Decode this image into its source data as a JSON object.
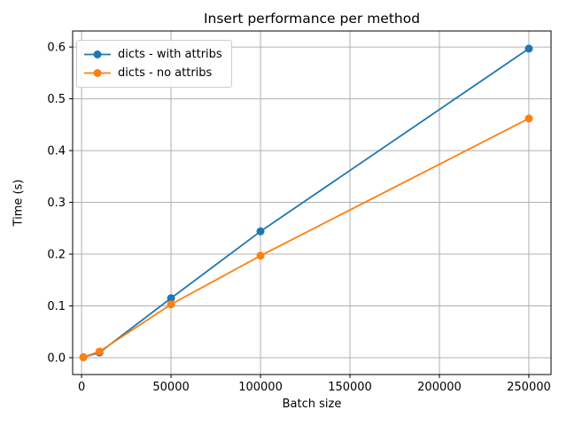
{
  "chart_data": {
    "type": "line",
    "title": "Insert performance per method",
    "xlabel": "Batch size",
    "ylabel": "Time (s)",
    "x_ticks": [
      0,
      50000,
      100000,
      150000,
      200000,
      250000
    ],
    "x_tick_labels": [
      "0",
      "50000",
      "100000",
      "150000",
      "200000",
      "250000"
    ],
    "y_ticks": [
      0,
      0.1,
      0.2,
      0.3,
      0.4,
      0.5,
      0.6
    ],
    "y_tick_labels": [
      "0.0",
      "0.1",
      "0.2",
      "0.3",
      "0.4",
      "0.5",
      "0.6"
    ],
    "xlim": [
      -5000,
      262400
    ],
    "ylim": [
      -0.0325,
      0.631
    ],
    "grid": true,
    "legend_position": "upper left",
    "series": [
      {
        "name": "dicts - with attribs",
        "color": "#1f77b4",
        "marker": "circle",
        "x": [
          1000,
          10000,
          50000,
          100000,
          250000
        ],
        "y": [
          0.001,
          0.01,
          0.115,
          0.244,
          0.597
        ]
      },
      {
        "name": "dicts - no attribs",
        "color": "#ff7f0e",
        "marker": "circle",
        "x": [
          1000,
          10000,
          50000,
          100000,
          250000
        ],
        "y": [
          0.001,
          0.012,
          0.103,
          0.197,
          0.462
        ]
      }
    ],
    "colors": {
      "grid": "#b0b0b0",
      "axes_edge": "#000000",
      "background": "#ffffff"
    }
  }
}
